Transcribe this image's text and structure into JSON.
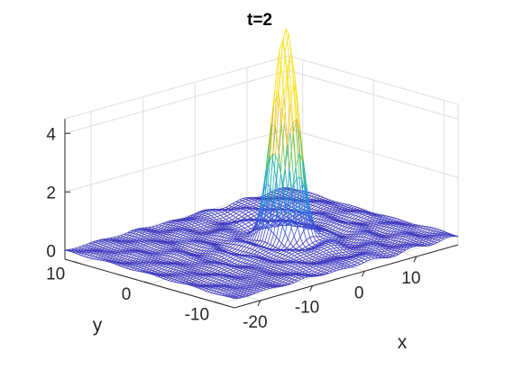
{
  "chart_data": {
    "type": "surface-mesh",
    "title": "t=2",
    "xlabel": "x",
    "ylabel": "y",
    "zlabel": "",
    "x_ticks": [
      "-20",
      "-10",
      "0",
      "10"
    ],
    "y_ticks": [
      "-10",
      "0",
      "10"
    ],
    "z_ticks": [
      "0",
      "2",
      "4"
    ],
    "xlim": [
      -25,
      18
    ],
    "ylim": [
      -12,
      12
    ],
    "zlim": [
      -0.3,
      4.5
    ],
    "grid": true,
    "colormap": "parula",
    "colormap_stops": [
      "#3e26a8",
      "#3e4fd9",
      "#2b82ea",
      "#1fa8c6",
      "#2dbf8f",
      "#95c32f",
      "#f0b93c",
      "#f9e320"
    ],
    "surface": {
      "description_free_params": true,
      "baseline": 0,
      "peaks": [
        {
          "x": 0.6,
          "y": 0.4,
          "height": 4.3
        },
        {
          "x": 1.6,
          "y": -0.6,
          "height": 3.8
        }
      ],
      "ripple_amplitude": 0.2
    }
  }
}
